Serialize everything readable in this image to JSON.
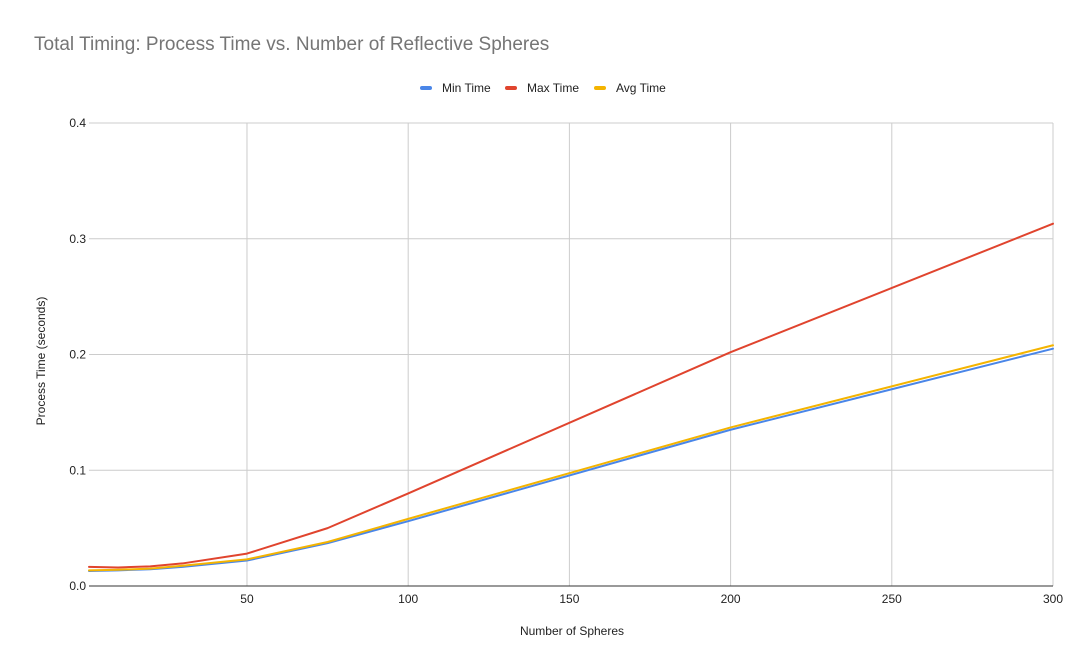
{
  "chart_data": {
    "type": "line",
    "title": "Total Timing: Process Time vs. Number of Reflective Spheres",
    "xlabel": "Number of Spheres",
    "ylabel": "Process Time (seconds)",
    "xlim": [
      1,
      300
    ],
    "ylim": [
      0,
      0.4
    ],
    "x_ticks": [
      "50",
      "100",
      "150",
      "200",
      "250",
      "300"
    ],
    "y_ticks": [
      "0.0",
      "0.1",
      "0.2",
      "0.3",
      "0.4"
    ],
    "grid": true,
    "legend_position": "top",
    "x": [
      1,
      10,
      20,
      30,
      50,
      75,
      100,
      200,
      300
    ],
    "series": [
      {
        "name": "Min Time",
        "color": "#4a86e8",
        "values": [
          0.013,
          0.0135,
          0.0145,
          0.0165,
          0.022,
          0.037,
          0.056,
          0.135,
          0.205
        ]
      },
      {
        "name": "Max Time",
        "color": "#e0442e",
        "values": [
          0.0165,
          0.016,
          0.017,
          0.0195,
          0.028,
          0.05,
          0.08,
          0.202,
          0.313
        ]
      },
      {
        "name": "Avg Time",
        "color": "#f4b400",
        "values": [
          0.0135,
          0.014,
          0.015,
          0.0175,
          0.023,
          0.038,
          0.058,
          0.137,
          0.208
        ]
      }
    ]
  }
}
